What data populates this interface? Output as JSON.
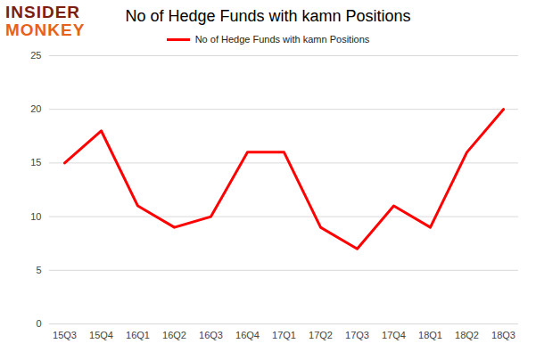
{
  "chart_data": {
    "type": "line",
    "title": "No of Hedge Funds with kamn Positions",
    "annotations": [
      "INSIDER",
      "MONKEY"
    ],
    "categories": [
      "15Q3",
      "15Q4",
      "16Q1",
      "16Q2",
      "16Q3",
      "16Q4",
      "17Q1",
      "17Q2",
      "17Q3",
      "17Q4",
      "18Q1",
      "18Q2",
      "18Q3"
    ],
    "series": [
      {
        "name": "No of Hedge Funds with kamn Positions",
        "color": "#ff0000",
        "values": [
          15,
          18,
          11,
          9,
          10,
          16,
          16,
          9,
          7,
          11,
          9,
          16,
          20
        ]
      }
    ],
    "ylim": [
      0,
      25
    ],
    "yticks": [
      0,
      5,
      10,
      15,
      20,
      25
    ],
    "grid": true,
    "legend": "top"
  }
}
